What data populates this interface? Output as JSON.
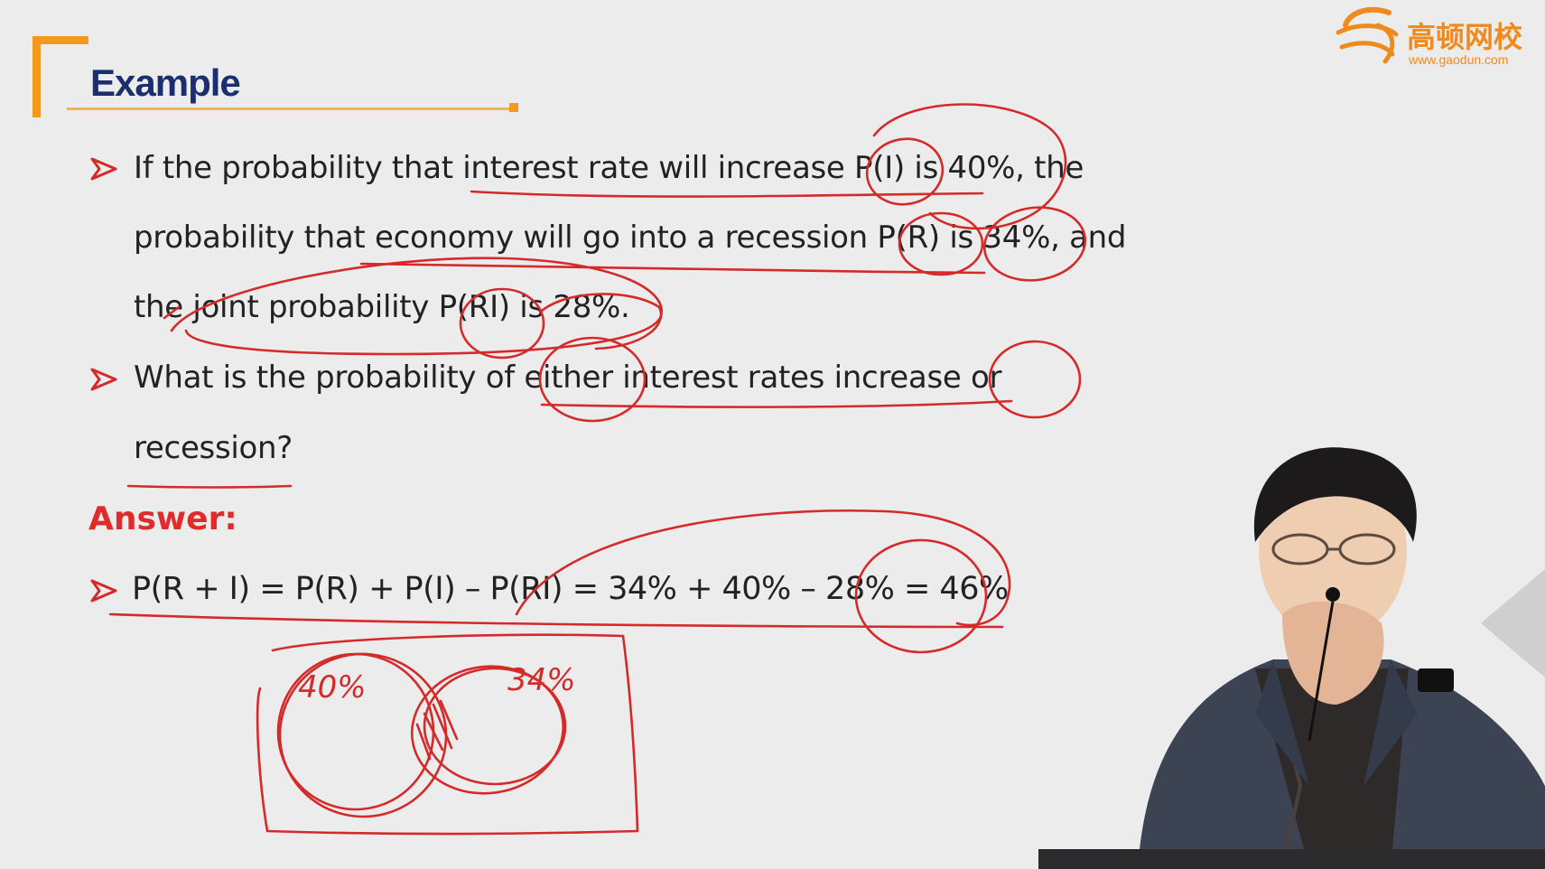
{
  "slide": {
    "title": "Example",
    "logo_cn": "高顿网校",
    "logo_url": "www.gaodun.com",
    "bullets": {
      "q1_line1": "If the probability that interest rate will increase P(I) is 40%, the",
      "q1_line2": "probability that economy will go into a recession P(R) is 34%, and",
      "q1_line3": "the joint probability P(RI) is 28%.",
      "q2_line1": "What is the probability of either interest rates increase or",
      "q2_line2": "recession?"
    },
    "answer_label": "Answer:",
    "formula": "P(R + I) = P(R) + P(I) – P(RI) = 34% + 40% – 28% = 46%"
  },
  "annotations": {
    "ink_color": "#d42a2a",
    "venn_left_label": "40%",
    "venn_right_label": "34%"
  },
  "icons": {
    "bullet": "arrow-bullet-icon",
    "logo": "gaodun-logo-icon"
  },
  "colors": {
    "background": "#ececec",
    "title": "#1b2f6e",
    "accent": "#f39a1e",
    "answer": "#e02b2b",
    "bullet": "#d42a2a"
  }
}
